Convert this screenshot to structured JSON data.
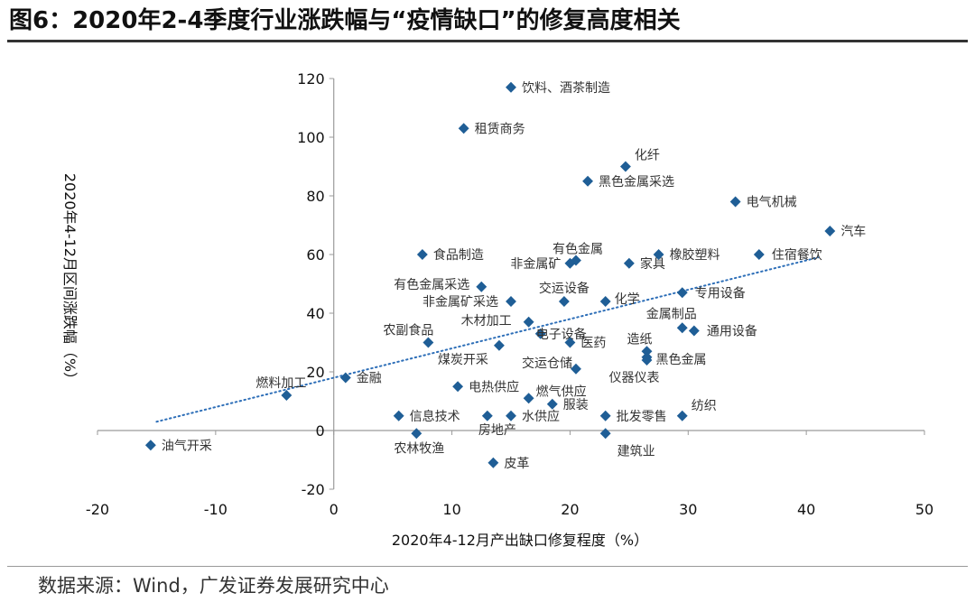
{
  "title": "图6：2020年2-4季度行业涨跌幅与“疫情缺口”的修复高度相关",
  "source": "数据来源：Wind，广发证券发展研究中心",
  "colors": {
    "point": "#1f5e96",
    "trendline": "#2e6fb8",
    "axis": "#9a9a9a",
    "text": "#222222"
  },
  "chart_data": {
    "type": "scatter",
    "xlabel": "2020年4-12月产出缺口修复程度（%）",
    "ylabel": "2020年4-12月区间涨跌幅（%）",
    "xlim": [
      -20,
      50
    ],
    "ylim": [
      -20,
      120
    ],
    "xticks": [
      -20,
      -10,
      0,
      10,
      20,
      30,
      40,
      50
    ],
    "yticks": [
      -20,
      0,
      20,
      40,
      60,
      80,
      100,
      120
    ],
    "grid": false,
    "legend": "none",
    "trendline": {
      "style": "dotted",
      "x": [
        -15,
        41
      ],
      "y": [
        3,
        59
      ]
    },
    "points": [
      {
        "name": "饮料、酒茶制造",
        "x": 15,
        "y": 117,
        "dx": 12,
        "dy": 0
      },
      {
        "name": "租赁商务",
        "x": 11,
        "y": 103,
        "dx": 12,
        "dy": 0
      },
      {
        "name": "化纤",
        "x": 24.7,
        "y": 90,
        "dx": 10,
        "dy": -13
      },
      {
        "name": "黑色金属采选",
        "x": 21.5,
        "y": 85,
        "dx": 12,
        "dy": 0
      },
      {
        "name": "电气机械",
        "x": 34,
        "y": 78,
        "dx": 12,
        "dy": 0
      },
      {
        "name": "汽车",
        "x": 42,
        "y": 68,
        "dx": 12,
        "dy": 0
      },
      {
        "name": "食品制造",
        "x": 7.5,
        "y": 60,
        "dx": 12,
        "dy": 0
      },
      {
        "name": "有色金属",
        "x": 20.5,
        "y": 58,
        "dx": -26,
        "dy": -13
      },
      {
        "name": "非金属矿",
        "x": 20,
        "y": 57,
        "dx": -66,
        "dy": 0
      },
      {
        "name": "家具",
        "x": 25,
        "y": 57,
        "dx": 12,
        "dy": 0
      },
      {
        "name": "橡胶塑料",
        "x": 27.5,
        "y": 60,
        "dx": 12,
        "dy": 0
      },
      {
        "name": "住宿餐饮",
        "x": 36,
        "y": 60,
        "dx": 14,
        "dy": 0
      },
      {
        "name": "有色金属采选",
        "x": 12.5,
        "y": 49,
        "dx": -97,
        "dy": -3
      },
      {
        "name": "交运设备",
        "x": 19.5,
        "y": 44,
        "dx": -28,
        "dy": -15
      },
      {
        "name": "非金属矿采选",
        "x": 15,
        "y": 44,
        "dx": -98,
        "dy": 0
      },
      {
        "name": "化学",
        "x": 23,
        "y": 44,
        "dx": 10,
        "dy": -3
      },
      {
        "name": "专用设备",
        "x": 29.5,
        "y": 47,
        "dx": 14,
        "dy": 0
      },
      {
        "name": "木材加工",
        "x": 16.5,
        "y": 37,
        "dx": -75,
        "dy": -2
      },
      {
        "name": "金属制品",
        "x": 29.5,
        "y": 35,
        "dx": -40,
        "dy": -16
      },
      {
        "name": "农副食品",
        "x": 8,
        "y": 30,
        "dx": -50,
        "dy": -14
      },
      {
        "name": "电子设备",
        "x": 17.5,
        "y": 33,
        "dx": -5,
        "dy": 0
      },
      {
        "name": "医药",
        "x": 20,
        "y": 30,
        "dx": 12,
        "dy": 0
      },
      {
        "name": "通用设备",
        "x": 30.5,
        "y": 34,
        "dx": 14,
        "dy": 0
      },
      {
        "name": "造纸",
        "x": 26.5,
        "y": 27,
        "dx": -22,
        "dy": -14
      },
      {
        "name": "黑色金属",
        "x": 26.5,
        "y": 25,
        "dx": 10,
        "dy": 2
      },
      {
        "name": "煤炭开采",
        "x": 14,
        "y": 29,
        "dx": -68,
        "dy": 15
      },
      {
        "name": "交运仓储",
        "x": 20.5,
        "y": 21,
        "dx": -60,
        "dy": -7
      },
      {
        "name": "仪器仪表",
        "x": 26.5,
        "y": 24,
        "dx": -42,
        "dy": 19
      },
      {
        "name": "燃料加工",
        "x": -4,
        "y": 12,
        "dx": -34,
        "dy": -14
      },
      {
        "name": "金融",
        "x": 1,
        "y": 18,
        "dx": 12,
        "dy": 0
      },
      {
        "name": "电热供应",
        "x": 10.5,
        "y": 15,
        "dx": 12,
        "dy": 0
      },
      {
        "name": "燃气供应",
        "x": 16.5,
        "y": 11,
        "dx": 8,
        "dy": -8
      },
      {
        "name": "服装",
        "x": 18.5,
        "y": 9,
        "dx": 12,
        "dy": 0
      },
      {
        "name": "纺织",
        "x": 29.5,
        "y": 5,
        "dx": 10,
        "dy": -12
      },
      {
        "name": "信息技术",
        "x": 5.5,
        "y": 5,
        "dx": 12,
        "dy": 0
      },
      {
        "name": "房地产",
        "x": 13,
        "y": 5,
        "dx": -10,
        "dy": 15
      },
      {
        "name": "水供应",
        "x": 15,
        "y": 5,
        "dx": 12,
        "dy": 0
      },
      {
        "name": "批发零售",
        "x": 23,
        "y": 5,
        "dx": 12,
        "dy": 0
      },
      {
        "name": "油气开采",
        "x": -15.5,
        "y": -5,
        "dx": 12,
        "dy": 0
      },
      {
        "name": "农林牧渔",
        "x": 7,
        "y": -1,
        "dx": -25,
        "dy": 16
      },
      {
        "name": "建筑业",
        "x": 23,
        "y": -1,
        "dx": 13,
        "dy": 19
      },
      {
        "name": "皮革",
        "x": 13.5,
        "y": -11,
        "dx": 12,
        "dy": 0
      }
    ]
  }
}
